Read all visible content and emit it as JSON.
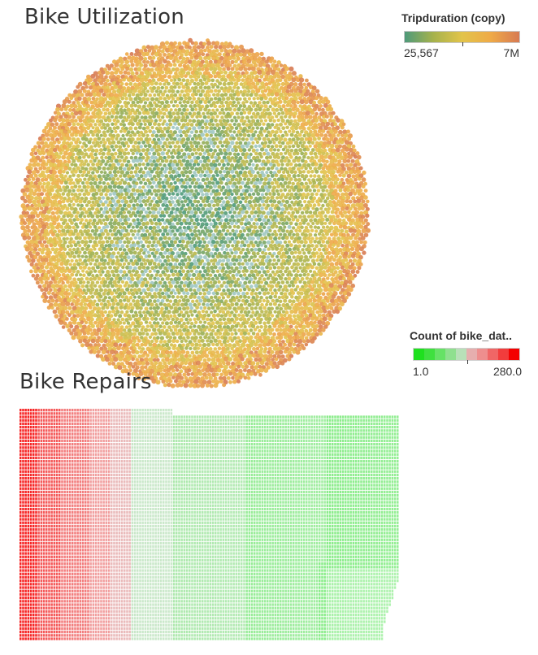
{
  "charts": {
    "utilization": {
      "title": "Bike Utilization"
    },
    "repairs": {
      "title": "Bike Repairs"
    }
  },
  "legends": {
    "tripduration": {
      "title": "Tripduration (copy)",
      "min_label": "25,567",
      "max_label": "7M",
      "colors": [
        "#4e9a7a",
        "#a6b24c",
        "#e2c44a",
        "#efaa47",
        "#d77a52"
      ]
    },
    "count": {
      "title": "Count of bike_dat..",
      "min_label": "1.0",
      "max_label": "280.0",
      "steps": [
        "#1fe01f",
        "#3fe03f",
        "#66e266",
        "#8fe08f",
        "#b8e0b8",
        "#e6aeae",
        "#ee8e8e",
        "#f06666",
        "#f23c3c",
        "#f40000"
      ]
    }
  },
  "chart_data": [
    {
      "type": "packed-bubble",
      "title": "Bike Utilization",
      "color_legend": {
        "title": "Tripduration (copy)",
        "min": 25567,
        "max": 7000000,
        "min_label": "25,567",
        "max_label": "7M"
      },
      "encoding": "one circle per bike, colored by trip duration; shorter durations (green/teal) at the center, longer durations (yellow/orange) toward the rim"
    },
    {
      "type": "heatmap",
      "title": "Bike Repairs",
      "color_legend": {
        "title": "Count of bike_dat..",
        "min": 1.0,
        "max": 280.0,
        "min_label": "1.0",
        "max_label": "280.0"
      },
      "encoding": "one cell per bike, colored by count; highest counts (red) in the left columns, fading to green toward the right, with the lower-right area thinning out"
    }
  ]
}
